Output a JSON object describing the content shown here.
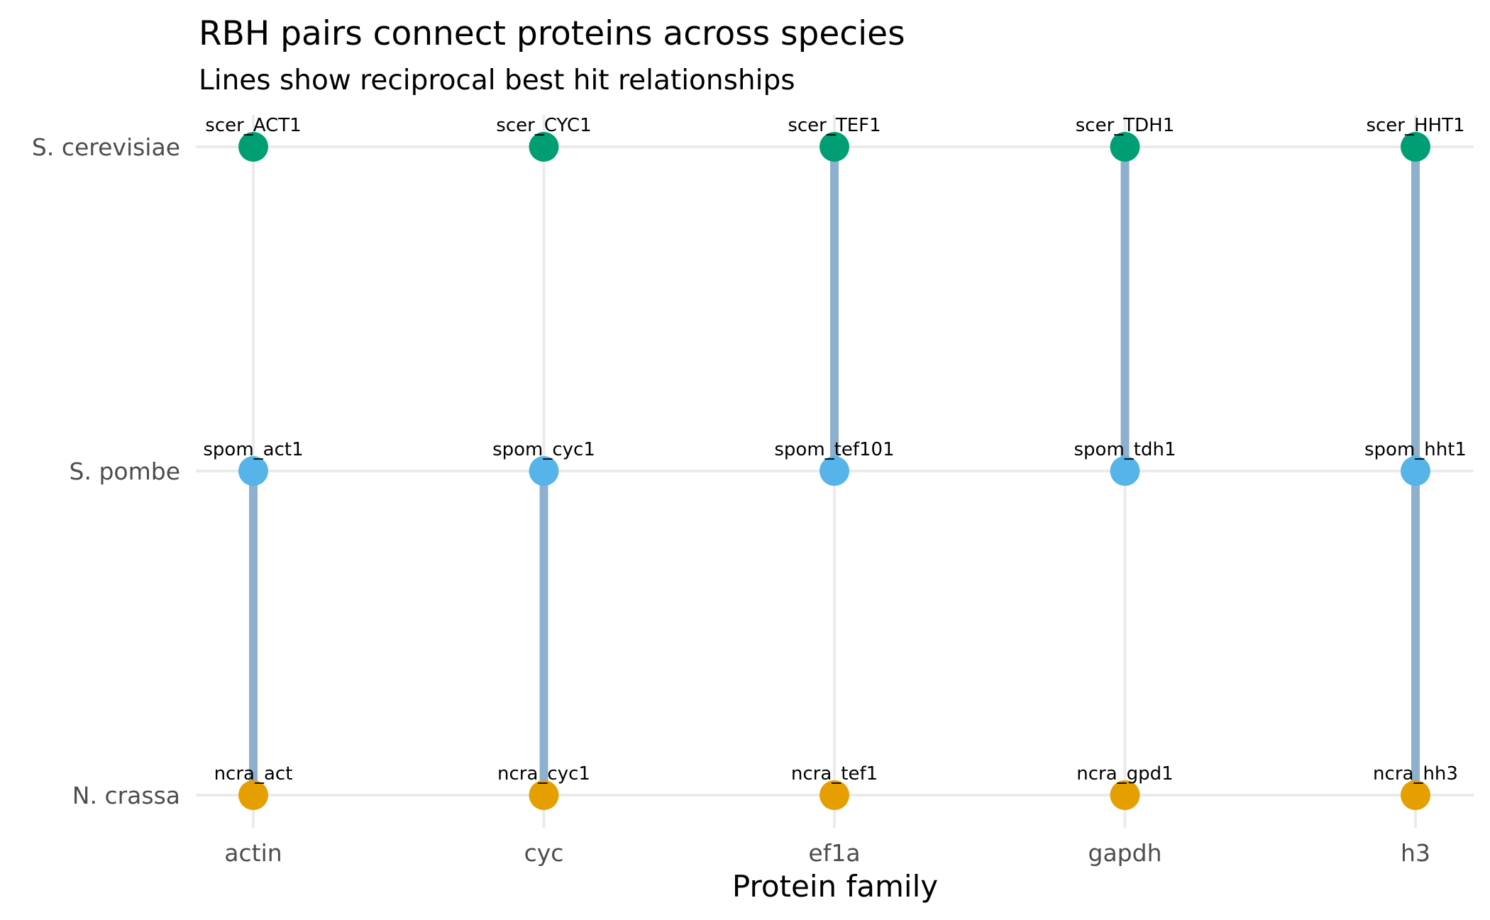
{
  "chart_data": {
    "type": "scatter",
    "title": "RBH pairs connect proteins across species",
    "subtitle": "Lines show reciprocal best hit relationships",
    "xlabel": "Protein family",
    "ylabel": "",
    "categories": [
      "actin",
      "cyc",
      "ef1a",
      "gapdh",
      "h3"
    ],
    "species": [
      "N. crassa",
      "S. pombe",
      "S. cerevisiae"
    ],
    "colors": {
      "S. cerevisiae": "#009E73",
      "S. pombe": "#56B4E9",
      "N. crassa": "#E69F00",
      "segment": "#8DB0CF",
      "grid": "#EBEBEB"
    },
    "points": [
      {
        "family": "actin",
        "species": "S. cerevisiae",
        "label": "scer_ACT1"
      },
      {
        "family": "cyc",
        "species": "S. cerevisiae",
        "label": "scer_CYC1"
      },
      {
        "family": "ef1a",
        "species": "S. cerevisiae",
        "label": "scer_TEF1"
      },
      {
        "family": "gapdh",
        "species": "S. cerevisiae",
        "label": "scer_TDH1"
      },
      {
        "family": "h3",
        "species": "S. cerevisiae",
        "label": "scer_HHT1"
      },
      {
        "family": "actin",
        "species": "S. pombe",
        "label": "spom_act1"
      },
      {
        "family": "cyc",
        "species": "S. pombe",
        "label": "spom_cyc1"
      },
      {
        "family": "ef1a",
        "species": "S. pombe",
        "label": "spom_tef101"
      },
      {
        "family": "gapdh",
        "species": "S. pombe",
        "label": "spom_tdh1"
      },
      {
        "family": "h3",
        "species": "S. pombe",
        "label": "spom_hht1"
      },
      {
        "family": "actin",
        "species": "N. crassa",
        "label": "ncra_act"
      },
      {
        "family": "cyc",
        "species": "N. crassa",
        "label": "ncra_cyc1"
      },
      {
        "family": "ef1a",
        "species": "N. crassa",
        "label": "ncra_tef1"
      },
      {
        "family": "gapdh",
        "species": "N. crassa",
        "label": "ncra_gpd1"
      },
      {
        "family": "h3",
        "species": "N. crassa",
        "label": "ncra_hh3"
      }
    ],
    "segments": [
      {
        "family": "actin",
        "from": "S. pombe",
        "to": "N. crassa"
      },
      {
        "family": "cyc",
        "from": "S. pombe",
        "to": "N. crassa"
      },
      {
        "family": "ef1a",
        "from": "S. cerevisiae",
        "to": "S. pombe"
      },
      {
        "family": "gapdh",
        "from": "S. cerevisiae",
        "to": "S. pombe"
      },
      {
        "family": "h3",
        "from": "S. cerevisiae",
        "to": "S. pombe"
      },
      {
        "family": "h3",
        "from": "S. pombe",
        "to": "N. crassa"
      }
    ],
    "grid": true,
    "legend": "none"
  }
}
